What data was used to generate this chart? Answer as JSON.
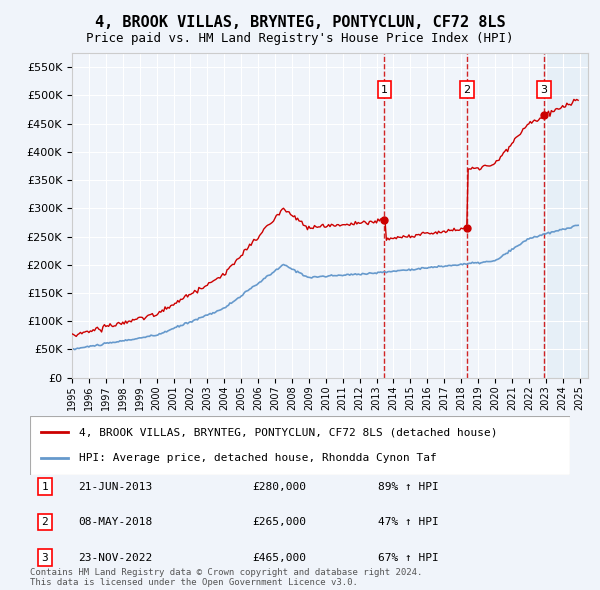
{
  "title": "4, BROOK VILLAS, BRYNTEG, PONTYCLUN, CF72 8LS",
  "subtitle": "Price paid vs. HM Land Registry's House Price Index (HPI)",
  "ylabel_ticks": [
    0,
    50000,
    100000,
    150000,
    200000,
    250000,
    300000,
    350000,
    400000,
    450000,
    500000,
    550000
  ],
  "ylim": [
    0,
    575000
  ],
  "xlim_start": 1995.0,
  "xlim_end": 2025.5,
  "sale_dates": [
    2013.47,
    2018.35,
    2022.9
  ],
  "sale_prices": [
    280000,
    265000,
    465000
  ],
  "sale_labels": [
    "1",
    "2",
    "3"
  ],
  "sale_info": [
    {
      "label": "1",
      "date": "21-JUN-2013",
      "price": "£280,000",
      "pct": "89% ↑ HPI"
    },
    {
      "label": "2",
      "date": "08-MAY-2018",
      "price": "£265,000",
      "pct": "47% ↑ HPI"
    },
    {
      "label": "3",
      "date": "23-NOV-2022",
      "price": "£465,000",
      "pct": "67% ↑ HPI"
    }
  ],
  "red_line_color": "#cc0000",
  "blue_line_color": "#6699cc",
  "background_color": "#f0f4fa",
  "grid_color": "#ffffff",
  "footer": "Contains HM Land Registry data © Crown copyright and database right 2024.\nThis data is licensed under the Open Government Licence v3.0.",
  "legend1": "4, BROOK VILLAS, BRYNTEG, PONTYCLUN, CF72 8LS (detached house)",
  "legend2": "HPI: Average price, detached house, Rhondda Cynon Taf"
}
